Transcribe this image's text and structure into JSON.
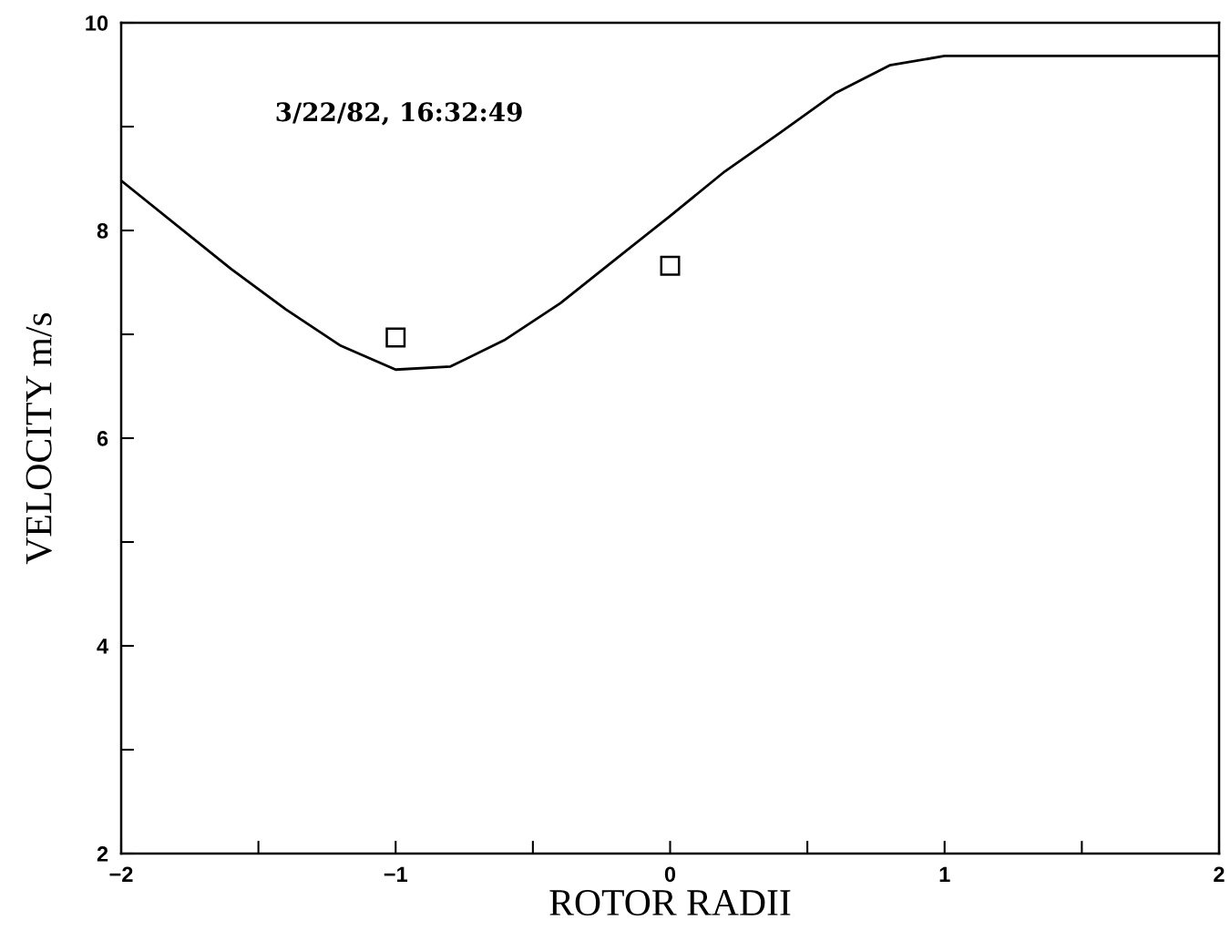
{
  "chart_data": {
    "type": "line",
    "xlabel": "ROTOR RADII",
    "ylabel": "VELOCITY m/s",
    "annotations": [
      "3/22/82, 16:32:49"
    ],
    "series": [
      {
        "color": "#000000",
        "marker": "none",
        "line_style": "solid",
        "x": [
          -2,
          -1.6,
          -1.4,
          -1.2,
          -1.0,
          -0.8,
          -0.6,
          -0.4,
          -0.2,
          0,
          0.2,
          0.4,
          0.6,
          0.8,
          1.0,
          2.0
        ],
        "values": [
          8.48,
          7.63,
          7.24,
          6.89,
          6.66,
          6.69,
          6.95,
          7.3,
          7.72,
          8.14,
          8.57,
          8.94,
          9.32,
          9.59,
          9.68,
          9.68
        ]
      },
      {
        "type": "scatter",
        "color": "#000000",
        "marker": "square",
        "x": [
          -1,
          0
        ],
        "values": [
          6.97,
          7.66
        ]
      }
    ],
    "xlim": [
      -2,
      2
    ],
    "xticks": [
      -2,
      {
        "value": -1.5,
        "label": null
      },
      -1,
      {
        "value": -0.5,
        "label": null
      },
      0,
      {
        "value": 0.5,
        "label": null
      },
      1,
      {
        "value": 1.5,
        "label": null
      },
      2
    ],
    "ylim": [
      2,
      10
    ],
    "yticks": [
      2,
      {
        "value": 3,
        "label": null
      },
      4,
      {
        "value": 5,
        "label": null
      },
      6,
      {
        "value": 7,
        "label": null
      },
      8,
      {
        "value": 9,
        "label": null
      },
      10
    ],
    "grid": false,
    "legend": false
  }
}
